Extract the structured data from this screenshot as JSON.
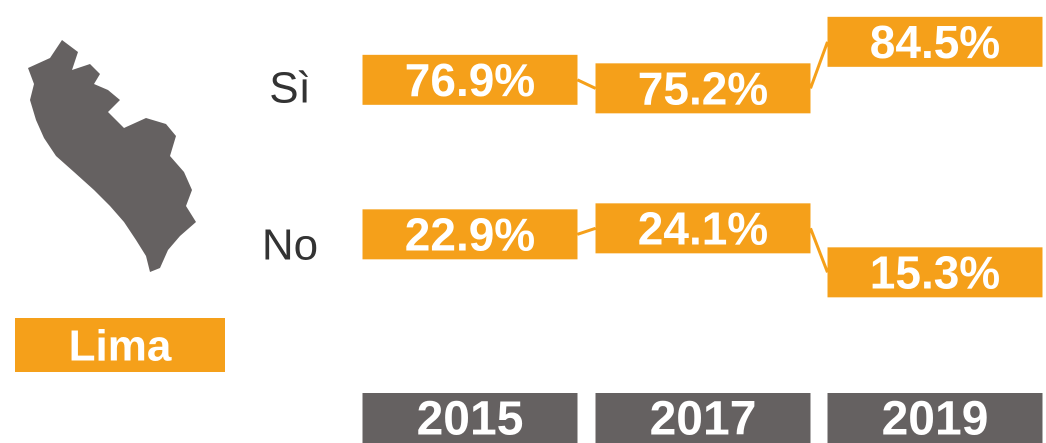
{
  "chart_data": {
    "type": "line",
    "region": "Lima",
    "categories": [
      "2015",
      "2017",
      "2019"
    ],
    "series": [
      {
        "name": "Sì",
        "color": "#f5a01a",
        "values": [
          76.9,
          75.2,
          84.5
        ],
        "value_labels": [
          "76.9%",
          "75.2%",
          "84.5%"
        ]
      },
      {
        "name": "No",
        "color": "#f5a01a",
        "values": [
          22.9,
          24.1,
          15.3
        ],
        "value_labels": [
          "22.9%",
          "24.1%",
          "15.3%"
        ]
      }
    ],
    "category_color": "#656161"
  }
}
